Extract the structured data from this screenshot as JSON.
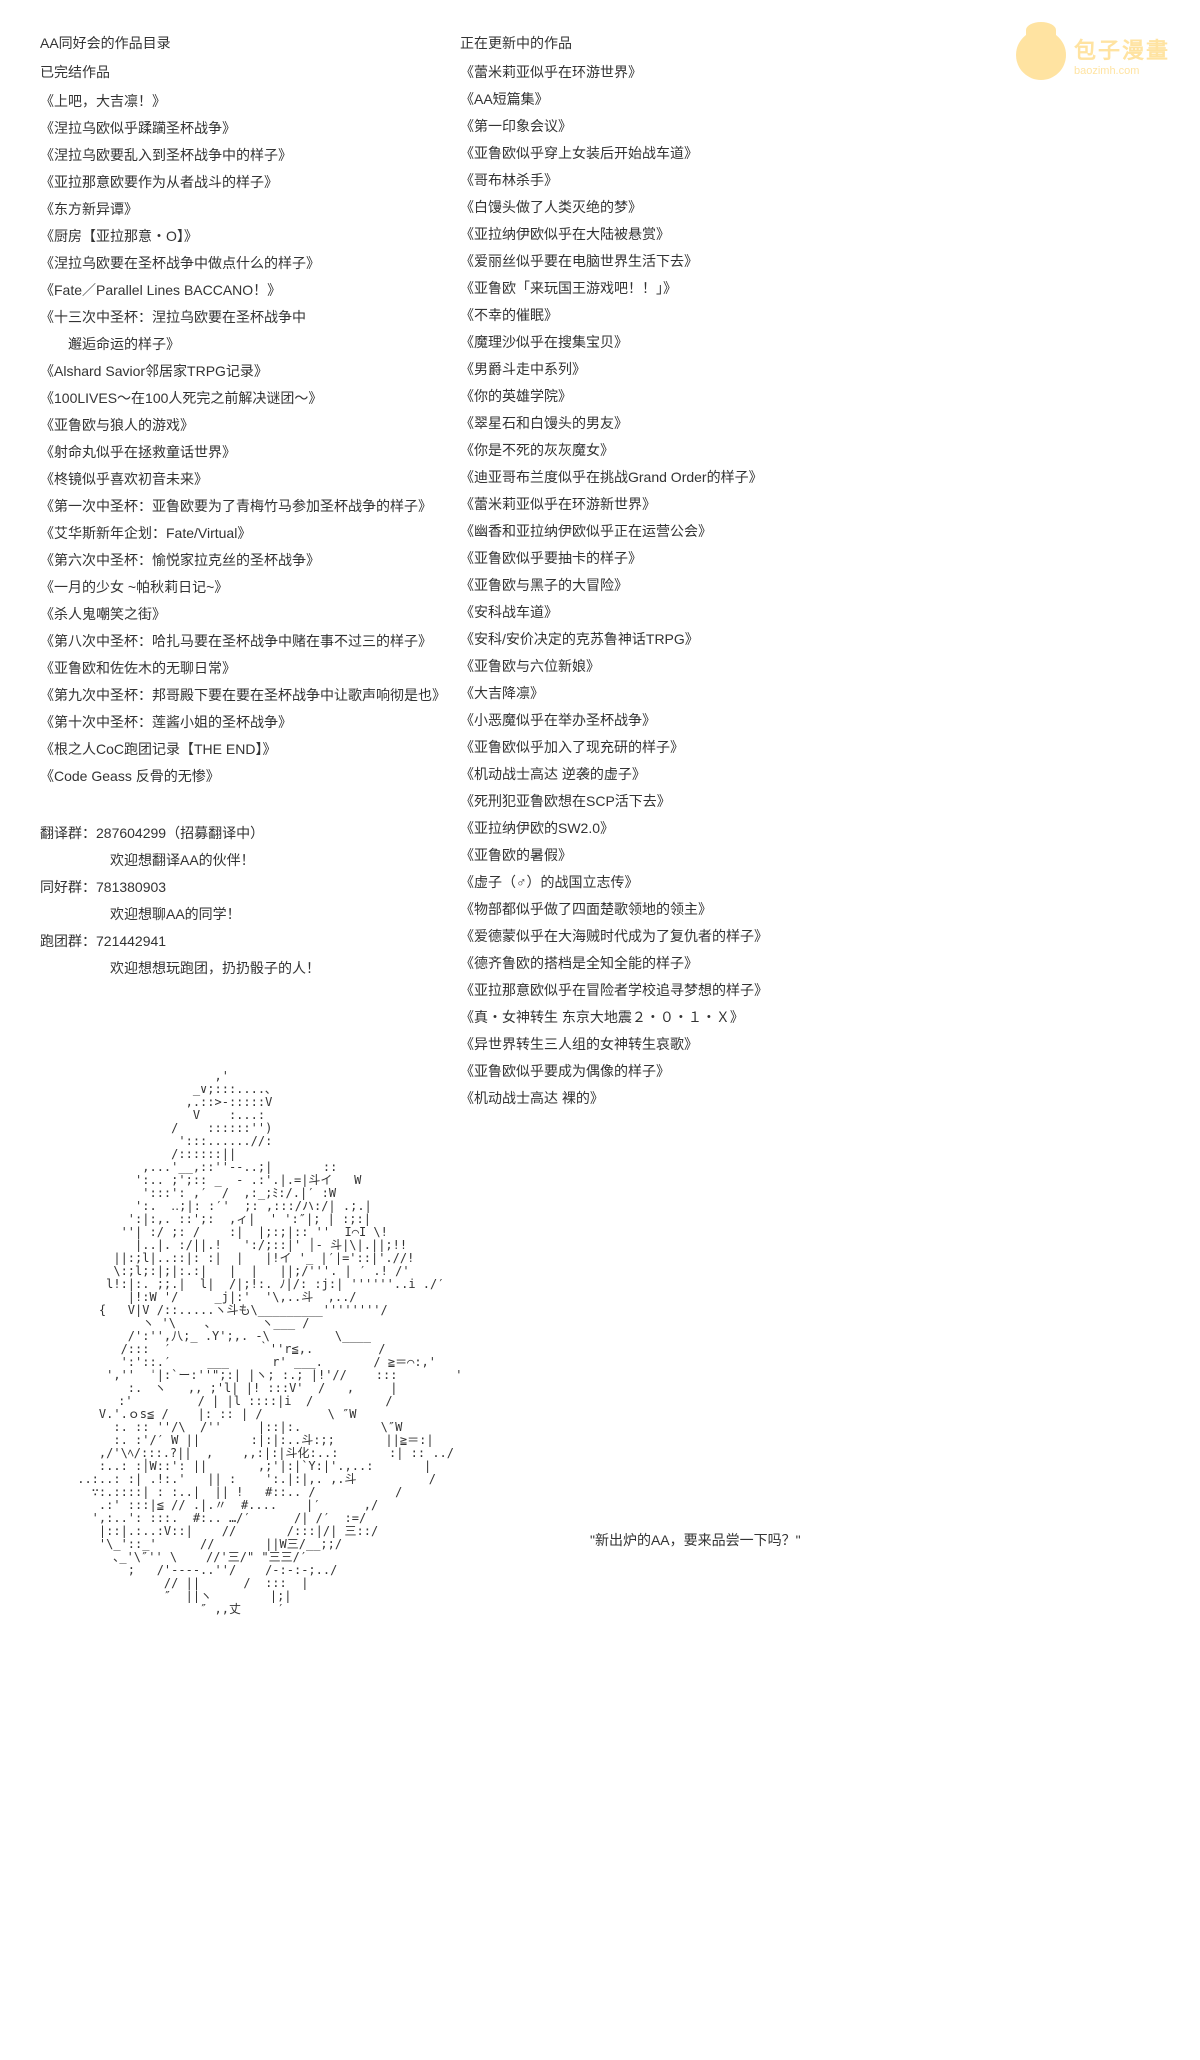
{
  "logo": {
    "cn": "包子漫畫",
    "en": "baozimh.com"
  },
  "left": {
    "title1": "AA同好会的作品目录",
    "title2": "已完结作品",
    "items": [
      "《上吧，大吉凛！》",
      "《涅拉乌欧似乎蹂躏圣杯战争》",
      "《涅拉乌欧要乱入到圣杯战争中的样子》",
      "《亚拉那意欧要作为从者战斗的样子》",
      "《东方新异谭》",
      "《厨房【亚拉那意・O】》",
      "《涅拉乌欧要在圣杯战争中做点什么的样子》",
      "《Fate／Parallel Lines BACCANO！》",
      "《十三次中圣杯：涅拉乌欧要在圣杯战争中",
      "　　邂逅命运的样子》",
      "《Alshard Savior邻居家TRPG记录》",
      "《100LIVES～在100人死完之前解决谜团～》",
      "《亚鲁欧与狼人的游戏》",
      "《射命丸似乎在拯救童话世界》",
      "《柊镜似乎喜欢初音未来》",
      "《第一次中圣杯：亚鲁欧要为了青梅竹马参加圣杯战争的样子》",
      "《艾华斯新年企划：Fate/Virtual》",
      "《第六次中圣杯：愉悦家拉克丝的圣杯战争》",
      "《一月的少女 ~帕秋莉日记~》",
      "《杀人鬼嘲笑之街》",
      "《第八次中圣杯：哈扎马要在圣杯战争中赌在事不过三的样子》",
      "《亚鲁欧和佐佐木的无聊日常》",
      "《第九次中圣杯：邦哥殿下要在要在圣杯战争中让歌声响彻是也》",
      "《第十次中圣杯：莲酱小姐的圣杯战争》",
      "《根之人CoC跑团记录【THE END】》",
      "《Code Geass 反骨的无惨》"
    ],
    "groups": [
      {
        "label": "翻译群：287604299（招募翻译中）",
        "sub": "欢迎想翻译AA的伙伴！"
      },
      {
        "label": "同好群：781380903",
        "sub": "欢迎想聊AA的同学！"
      },
      {
        "label": "跑团群：721442941",
        "sub": "欢迎想想玩跑团，扔扔骰子的人！"
      }
    ]
  },
  "right": {
    "title": "正在更新中的作品",
    "items": [
      "《蕾米莉亚似乎在环游世界》",
      "《AA短篇集》",
      "《第一印象会议》",
      "《亚鲁欧似乎穿上女装后开始战车道》",
      "《哥布林杀手》",
      "《白馒头做了人类灭绝的梦》",
      "《亚拉纳伊欧似乎在大陆被悬赏》",
      "《爱丽丝似乎要在电脑世界生活下去》",
      "《亚鲁欧「来玩国王游戏吧！！」》",
      "《不幸的催眠》",
      "《魔理沙似乎在搜集宝贝》",
      "《男爵斗走中系列》",
      "《你的英雄学院》",
      "《翠星石和白馒头的男友》",
      "《你是不死的灰灰魔女》",
      "《迪亚哥布兰度似乎在挑战Grand Order的样子》",
      "《蕾米莉亚似乎在环游新世界》",
      "《幽香和亚拉纳伊欧似乎正在运营公会》",
      "《亚鲁欧似乎要抽卡的样子》",
      "《亚鲁欧与黑子的大冒险》",
      "《安科战车道》",
      "《安科/安价决定的克苏鲁神话TRPG》",
      "《亚鲁欧与六位新娘》",
      "《大吉降凛》",
      "《小恶魔似乎在举办圣杯战争》",
      "《亚鲁欧似乎加入了现充研的样子》",
      "《机动战士高达 逆袭的虚子》",
      "《死刑犯亚鲁欧想在SCP活下去》",
      "《亚拉纳伊欧的SW2.0》",
      "《亚鲁欧的暑假》",
      "《虚子（♂）的战国立志传》",
      "《物部都似乎做了四面楚歌领地的领主》",
      "《爱德蒙似乎在大海贼时代成为了复仇者的样子》",
      "《德齐鲁欧的搭档是全知全能的样子》",
      "《亚拉那意欧似乎在冒险者学校追寻梦想的样子》",
      "《真・女神转生 东京大地震２・０・１・Ｘ》",
      "《异世界转生三人组的女神转生哀歌》",
      "《亚鲁欧似乎要成为偶像的样子》",
      "《机动战士高达 裸的》"
    ]
  },
  "quote": "\"新出炉的AA，要来品尝一下吗？\"",
  "ascii": "                    ,'\n                 _∨;:::....､\n                ,.::>-:::::V\n                 V    :...:\n              /    ::::::'')\n               ':::......//:\n              /::::::||\n          ,...'__,::''--..;|       ::\n         ':.. ;';:: _  - .:'.|.=|斗イ   W\n          ':::': ,′  /  ,:_;ﾐ:/.|′ :W\n         ':.  ‥;|: :′'  ;: ,:::/ハ:/| .;.|\n        ':|:,. ::';:  ,ィ|  ' ':″|; | :;:|\n       ''| :/ ;: /    :|  |;:;|:: ''  I⌒I \\!\n         |..|. :/||.!   ':/;::|' │- 斗|\\|.||;!!\n      ||:;l|..::|: :|  |   |!イ '_ |′|='::|'.//!\n      \\:;l;:|;|:.:|   |  |   ||;/'''. | ′ .! /'\n     l!:|:. ;;.|  l|  /|;!:. ﾉ|/: :j:| ''''''..i ./′\n        |!:W '/     _j|:'  '\\,..斗  ,../\n    {   V|V /::.....ヽ斗も\\_________''''''''/\n          ヽ '\\    ､       ヽ___ /\n        /':'',八;_ .Y';,. -\\         \\____\n       /:::  ′            ｀''r≦,.         /\n       ':'::.′     ___      r' ___.       / ≧＝⌒:,'\n     ',''  ˈ|:`ー:''\";:| |ヽ; :.; |!'//    :::        '\n        :.　ヽ   ,, ;'l| |! :::V'  /   ,     |\n     　:'         / | |l ::::|i  /          /\n    V.'.ｏs≦ /    |: :: | /         \\ ″W\n      :. :: ''/\\  /''     |::|:.           \\″W\n      :. :'/′ W ||       :|:|:..斗:;;       ||≧＝:|\n    ,/'\\ﾍ/:::.?||  ,    ,,:|:|斗化:..:       :| :: ../\n    :..: :│W::': ||       ,;'|:|`Y:|'.,..:       |\n ..:..: :| .!:.'   || :    ':.|:|,. ,.斗          /\n   ∵:.::::| : :..|  || !   #::.. /           /\n    .:' :::|≦ // .|.〃  #....    |′      ,/\n   ',:..': :::.  #:.. …/′      /| /′  :=/\n    |::|.:..:V::|    //       /:::|/| 三::/\n    '\\_'::_'      //       ||W三/__;;/\n      ､_'\\″'' \\    //'三/\" \"三三/′\n        ;   /'----..''/    /-:-:-;../\n             // ||      /  :::  |\n             ″  ||ヽ        |;|\n                  ″ ,,丈     ′"
}
